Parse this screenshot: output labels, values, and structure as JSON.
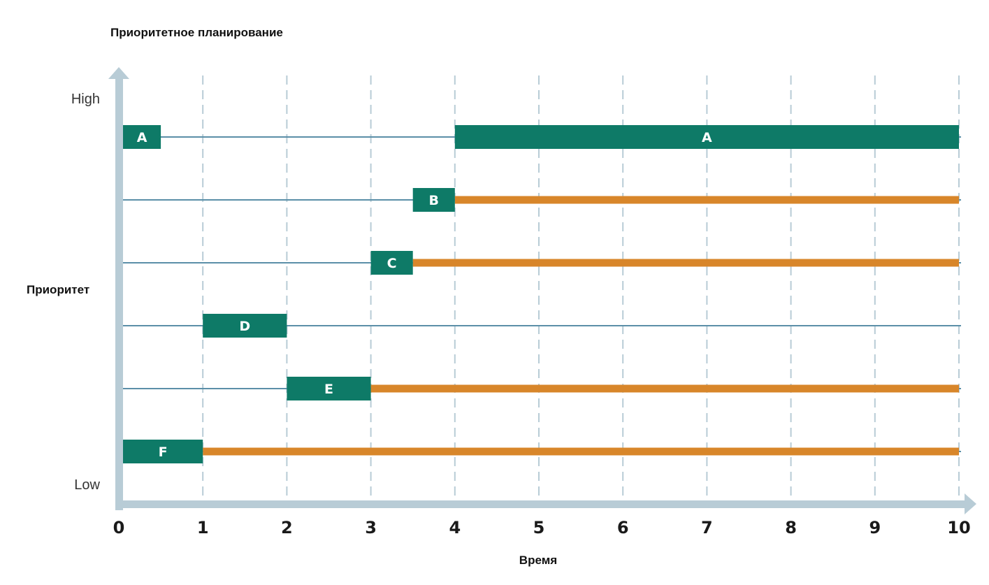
{
  "title": "Приоритетное планирование",
  "chart_data": {
    "type": "gantt",
    "xlabel": "Время",
    "ylabel": "Приоритет",
    "y_high_label": "High",
    "y_low_label": "Low",
    "xlim": [
      0,
      10
    ],
    "x_ticks": [
      "0",
      "1",
      "2",
      "3",
      "4",
      "5",
      "6",
      "7",
      "8",
      "9",
      "10"
    ],
    "grid": "vertical dashed",
    "colors": {
      "running": "#0e7a67",
      "waiting": "#d8862a",
      "timeline": "#5b8fa8",
      "axis": "#b8ccd6",
      "grid": "#b8ccd6"
    },
    "tasks": [
      {
        "label": "A",
        "running": [
          [
            0,
            0.5
          ],
          [
            4,
            10
          ]
        ],
        "waiting": []
      },
      {
        "label": "B",
        "running": [
          [
            3.5,
            4
          ]
        ],
        "waiting": [
          [
            4,
            10
          ]
        ]
      },
      {
        "label": "C",
        "running": [
          [
            3,
            3.5
          ]
        ],
        "waiting": [
          [
            3.5,
            10
          ]
        ]
      },
      {
        "label": "D",
        "running": [
          [
            1,
            2
          ]
        ],
        "waiting": []
      },
      {
        "label": "E",
        "running": [
          [
            2,
            3
          ]
        ],
        "waiting": [
          [
            3,
            10
          ]
        ]
      },
      {
        "label": "F",
        "running": [
          [
            0,
            1
          ]
        ],
        "waiting": [
          [
            1,
            10
          ]
        ]
      }
    ]
  }
}
